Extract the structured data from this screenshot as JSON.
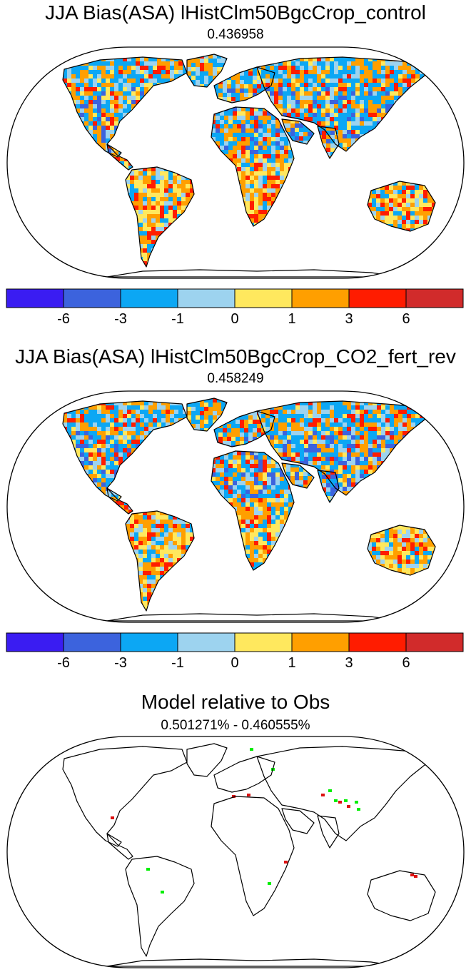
{
  "panels": [
    {
      "title": "JJA Bias(ASA) lHistClm50BgcCrop_control",
      "subtitle": "0.436958"
    },
    {
      "title": "JJA Bias(ASA) lHistClm50BgcCrop_CO2_fert_rev",
      "subtitle": "0.458249"
    },
    {
      "title": "Model relative to Obs",
      "subtitle": "0.501271% - 0.460555%"
    }
  ],
  "colorbar": {
    "colors": [
      "#3a1cf2",
      "#3c63dd",
      "#0ca7f4",
      "#9dd3ef",
      "#ffe85e",
      "#ff9f00",
      "#ff1c00",
      "#d12b2b"
    ],
    "labels": [
      "-6",
      "-3",
      "-1",
      "0",
      "1",
      "3",
      "6"
    ]
  },
  "diff_colors": {
    "positive": "#00ee00",
    "negative": "#dd1111"
  }
}
